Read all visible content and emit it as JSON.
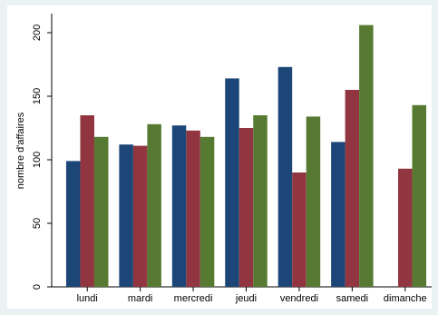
{
  "chart_data": {
    "type": "bar",
    "title": "",
    "xlabel": "",
    "ylabel": "nombre d'affaires",
    "ylim": [
      0,
      215
    ],
    "yticks": [
      0,
      50,
      100,
      150,
      200
    ],
    "grid": false,
    "legend": "none",
    "categories": [
      "lundi",
      "mardi",
      "mercredi",
      "jeudi",
      "vendredi",
      "samedi",
      "dimanche"
    ],
    "series": [
      {
        "color": "#1b4677",
        "values": [
          99,
          112,
          127,
          164,
          173,
          114,
          null
        ]
      },
      {
        "color": "#913640",
        "values": [
          135,
          111,
          123,
          125,
          90,
          155,
          93
        ]
      },
      {
        "color": "#577a32",
        "values": [
          118,
          128,
          118,
          135,
          134,
          206,
          143
        ]
      }
    ]
  }
}
